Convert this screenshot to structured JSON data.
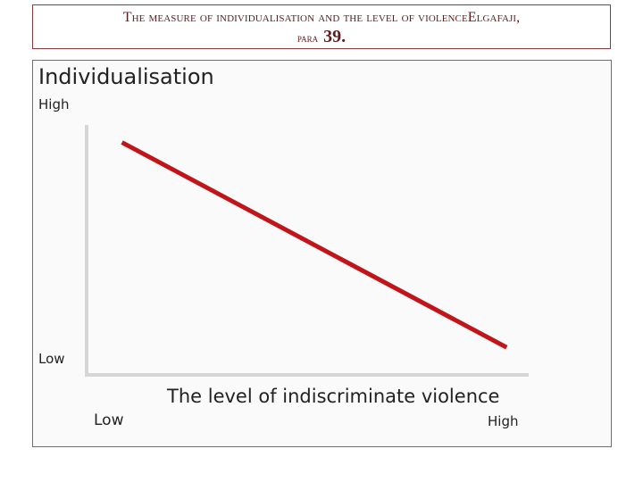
{
  "title": {
    "line1": "The measure of individualisation and the level of violenceElgafaji,",
    "line2_prefix": "para",
    "line2_number": "39."
  },
  "colors": {
    "line": "#c0151a",
    "axis": "#d6d6d6",
    "title_text": "#5a1e1e",
    "title_border": "#8a3a3a"
  },
  "chart_data": {
    "type": "line",
    "title": "",
    "xlabel": "The level of indiscriminate violence",
    "ylabel": "Individualisation",
    "x_tick_labels": [
      "Low",
      "High"
    ],
    "y_tick_labels": [
      "High",
      "Low"
    ],
    "xlim": [
      0,
      1
    ],
    "ylim": [
      0,
      1
    ],
    "grid": false,
    "series": [
      {
        "x": [
          0.08,
          0.95
        ],
        "y": [
          0.93,
          0.11
        ]
      }
    ]
  }
}
